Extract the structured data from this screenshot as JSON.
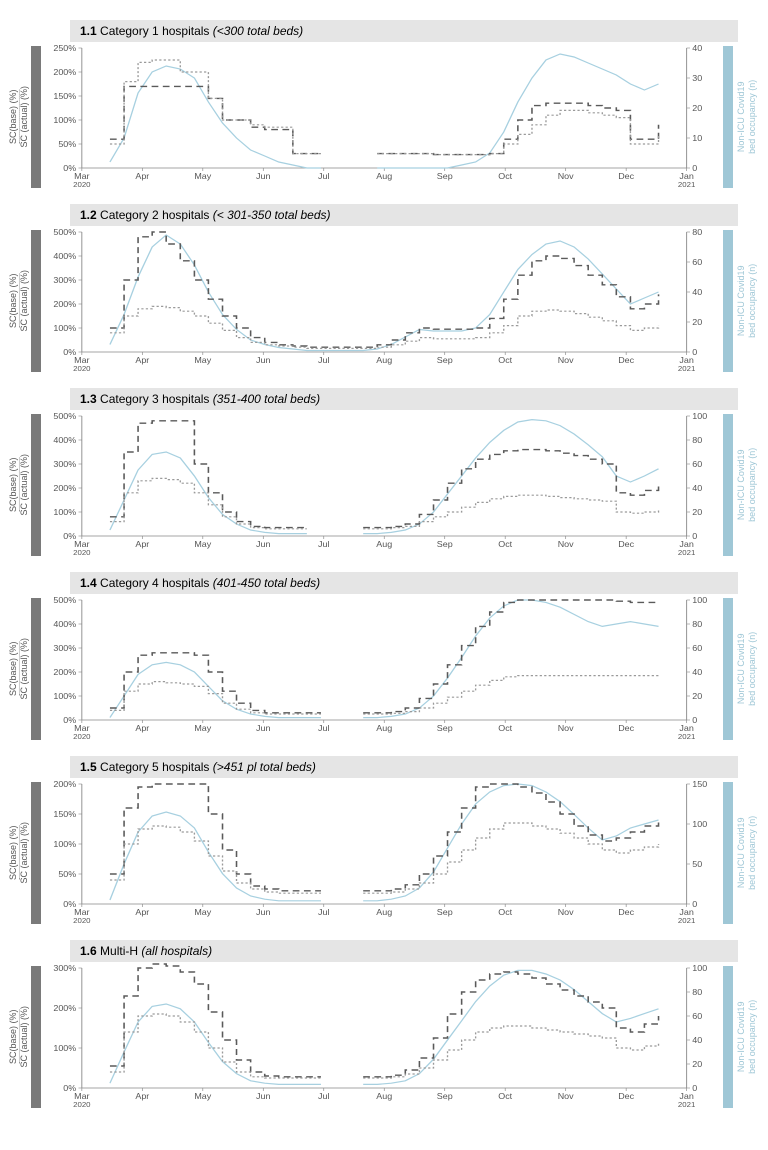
{
  "colors": {
    "background": "#ffffff",
    "title_bg": "#e5e5e5",
    "left_bar": "#7a7a7a",
    "right_bar": "#9fc7d6",
    "sc_base": "#9a9a9a",
    "sc_actual": "#5a5a5a",
    "occupancy": "#a7d0e0",
    "axis": "#888888",
    "tick_text": "#555555"
  },
  "typography": {
    "title_fontsize": 12,
    "axis_label_fontsize": 9,
    "tick_fontsize": 8
  },
  "left_axis_lines": [
    "SC(base) (%)",
    "SC (actual) (%)"
  ],
  "right_axis_lines": [
    "Non-ICU Covid19",
    "bed occupancy (n)"
  ],
  "line_styles": {
    "sc_base": {
      "dash": "2 2",
      "width": 1.2
    },
    "sc_actual": {
      "dash": "6 4",
      "width": 1.4
    },
    "occupancy": {
      "dash": "none",
      "width": 1.2
    }
  },
  "x_axis": {
    "months": [
      "Mar",
      "Apr",
      "May",
      "Jun",
      "Jul",
      "Aug",
      "Sep",
      "Oct",
      "Nov",
      "Dec",
      "Jan"
    ],
    "year_start": "2020",
    "year_end": "2021",
    "n_points": 44
  },
  "panels": [
    {
      "id": "p1",
      "num": "1.1",
      "name": "Category 1 hospitals",
      "desc": "(<300 total beds)",
      "y_left": {
        "min": 0,
        "max": 250,
        "step": 50,
        "suffix": "%"
      },
      "y_right": {
        "min": 0,
        "max": 40,
        "step": 10,
        "suffix": ""
      },
      "sc_base": [
        null,
        null,
        50,
        180,
        220,
        225,
        225,
        200,
        200,
        145,
        100,
        100,
        90,
        85,
        85,
        30,
        30,
        30,
        null,
        null,
        null,
        30,
        30,
        30,
        30,
        28,
        28,
        28,
        28,
        30,
        50,
        70,
        90,
        110,
        120,
        120,
        115,
        110,
        105,
        50,
        50,
        70,
        null,
        null
      ],
      "sc_actual": [
        null,
        null,
        60,
        170,
        170,
        170,
        170,
        170,
        170,
        145,
        100,
        100,
        85,
        80,
        80,
        30,
        30,
        30,
        null,
        null,
        null,
        30,
        30,
        30,
        30,
        28,
        28,
        28,
        28,
        30,
        60,
        100,
        130,
        135,
        135,
        135,
        130,
        125,
        120,
        60,
        60,
        90,
        null,
        null
      ],
      "occupancy": [
        null,
        null,
        2,
        10,
        25,
        32,
        34,
        33,
        30,
        22,
        15,
        10,
        6,
        4,
        2,
        1,
        0,
        0,
        null,
        null,
        null,
        0,
        0,
        0,
        0,
        0,
        0,
        1,
        2,
        5,
        12,
        22,
        30,
        36,
        38,
        37,
        35,
        33,
        31,
        28,
        26,
        28,
        null,
        null
      ]
    },
    {
      "id": "p2",
      "num": "1.2",
      "name": "Category 2 hospitals",
      "desc": "(< 301-350 total beds)",
      "y_left": {
        "min": 0,
        "max": 500,
        "step": 100,
        "suffix": "%"
      },
      "y_right": {
        "min": 0,
        "max": 80,
        "step": 20,
        "suffix": ""
      },
      "sc_base": [
        null,
        null,
        80,
        150,
        180,
        190,
        185,
        170,
        150,
        120,
        90,
        60,
        40,
        30,
        25,
        20,
        15,
        15,
        15,
        15,
        15,
        20,
        30,
        45,
        60,
        55,
        55,
        55,
        60,
        80,
        110,
        150,
        170,
        175,
        170,
        160,
        145,
        130,
        110,
        90,
        100,
        110,
        null,
        null
      ],
      "sc_actual": [
        null,
        null,
        100,
        300,
        480,
        500,
        450,
        380,
        300,
        220,
        150,
        100,
        60,
        40,
        30,
        25,
        20,
        20,
        20,
        20,
        20,
        30,
        50,
        80,
        100,
        95,
        95,
        95,
        100,
        140,
        220,
        320,
        380,
        400,
        390,
        360,
        320,
        280,
        230,
        180,
        200,
        240,
        null,
        null
      ],
      "occupancy": [
        null,
        null,
        5,
        25,
        50,
        70,
        78,
        72,
        58,
        40,
        25,
        15,
        8,
        5,
        3,
        2,
        1,
        1,
        1,
        1,
        1,
        2,
        5,
        10,
        15,
        14,
        14,
        14,
        16,
        25,
        40,
        55,
        65,
        72,
        74,
        70,
        62,
        52,
        42,
        32,
        36,
        40,
        null,
        null
      ]
    },
    {
      "id": "p3",
      "num": "1.3",
      "name": "Category 3 hospitals",
      "desc": "(351-400 total beds)",
      "y_left": {
        "min": 0,
        "max": 500,
        "step": 100,
        "suffix": "%"
      },
      "y_right": {
        "min": 0,
        "max": 100,
        "step": 20,
        "suffix": ""
      },
      "sc_base": [
        null,
        null,
        60,
        180,
        230,
        240,
        235,
        220,
        180,
        130,
        80,
        50,
        35,
        30,
        30,
        30,
        30,
        null,
        null,
        null,
        30,
        30,
        35,
        40,
        60,
        80,
        100,
        120,
        140,
        155,
        165,
        170,
        170,
        165,
        160,
        155,
        150,
        145,
        100,
        95,
        100,
        110,
        null,
        null
      ],
      "sc_actual": [
        null,
        null,
        80,
        350,
        470,
        480,
        480,
        480,
        300,
        180,
        100,
        60,
        40,
        35,
        35,
        35,
        35,
        null,
        null,
        null,
        35,
        35,
        40,
        50,
        90,
        150,
        220,
        280,
        320,
        340,
        355,
        360,
        360,
        355,
        345,
        335,
        320,
        300,
        180,
        170,
        190,
        220,
        null,
        null
      ],
      "occupancy": [
        null,
        null,
        5,
        30,
        55,
        68,
        70,
        65,
        50,
        32,
        18,
        10,
        5,
        3,
        2,
        2,
        2,
        null,
        null,
        null,
        2,
        2,
        3,
        5,
        10,
        20,
        35,
        50,
        65,
        78,
        88,
        95,
        97,
        96,
        92,
        85,
        76,
        66,
        50,
        45,
        50,
        56,
        null,
        null
      ]
    },
    {
      "id": "p4",
      "num": "1.4",
      "name": "Category 4 hospitals",
      "desc": "(401-450 total beds)",
      "y_left": {
        "min": 0,
        "max": 500,
        "step": 100,
        "suffix": "%"
      },
      "y_right": {
        "min": 0,
        "max": 100,
        "step": 20,
        "suffix": ""
      },
      "sc_base": [
        null,
        null,
        40,
        120,
        150,
        160,
        155,
        150,
        140,
        110,
        70,
        45,
        30,
        25,
        25,
        25,
        25,
        25,
        null,
        null,
        25,
        25,
        28,
        35,
        50,
        70,
        95,
        120,
        145,
        165,
        180,
        185,
        185,
        185,
        185,
        185,
        185,
        185,
        185,
        185,
        185,
        185,
        null,
        null
      ],
      "sc_actual": [
        null,
        null,
        50,
        200,
        270,
        280,
        280,
        280,
        270,
        200,
        120,
        70,
        40,
        30,
        30,
        30,
        30,
        30,
        null,
        null,
        30,
        30,
        35,
        50,
        90,
        150,
        230,
        310,
        390,
        450,
        490,
        500,
        500,
        500,
        500,
        500,
        500,
        500,
        495,
        490,
        490,
        490,
        null,
        null
      ],
      "occupancy": [
        null,
        null,
        2,
        20,
        38,
        46,
        48,
        46,
        40,
        28,
        16,
        9,
        5,
        3,
        2,
        2,
        2,
        2,
        null,
        null,
        2,
        2,
        3,
        5,
        10,
        20,
        35,
        52,
        70,
        85,
        95,
        100,
        100,
        98,
        94,
        88,
        82,
        78,
        80,
        82,
        80,
        78,
        null,
        null
      ]
    },
    {
      "id": "p5",
      "num": "1.5",
      "name": "Category 5 hospitals",
      "desc": "(>451 pl total beds)",
      "y_left": {
        "min": 0,
        "max": 200,
        "step": 50,
        "suffix": "%"
      },
      "y_right": {
        "min": 0,
        "max": 150,
        "step": 50,
        "suffix": ""
      },
      "sc_base": [
        null,
        null,
        40,
        100,
        125,
        130,
        128,
        120,
        105,
        80,
        55,
        35,
        25,
        20,
        18,
        18,
        18,
        18,
        null,
        null,
        18,
        18,
        20,
        25,
        35,
        50,
        70,
        90,
        110,
        125,
        135,
        135,
        130,
        125,
        118,
        110,
        100,
        90,
        85,
        90,
        95,
        100,
        null,
        null
      ],
      "sc_actual": [
        null,
        null,
        50,
        160,
        195,
        200,
        200,
        200,
        200,
        150,
        90,
        50,
        30,
        25,
        22,
        22,
        22,
        22,
        null,
        null,
        22,
        22,
        25,
        32,
        50,
        80,
        120,
        160,
        195,
        200,
        200,
        195,
        185,
        170,
        150,
        130,
        115,
        105,
        110,
        120,
        130,
        140,
        null,
        null
      ],
      "occupancy": [
        null,
        null,
        5,
        50,
        90,
        110,
        115,
        110,
        95,
        65,
        38,
        20,
        10,
        6,
        4,
        4,
        4,
        4,
        null,
        null,
        4,
        4,
        6,
        10,
        20,
        40,
        70,
        100,
        125,
        140,
        148,
        150,
        148,
        140,
        128,
        112,
        95,
        80,
        85,
        95,
        100,
        105,
        null,
        null
      ]
    },
    {
      "id": "p6",
      "num": "1.6",
      "name": "Multi-H",
      "desc": "(all hospitals)",
      "y_left": {
        "min": 0,
        "max": 300,
        "step": 100,
        "suffix": "%"
      },
      "y_right": {
        "min": 0,
        "max": 100,
        "step": 20,
        "suffix": ""
      },
      "sc_base": [
        null,
        null,
        40,
        140,
        180,
        185,
        180,
        165,
        140,
        100,
        65,
        40,
        28,
        25,
        25,
        25,
        25,
        25,
        null,
        null,
        25,
        25,
        28,
        35,
        50,
        70,
        95,
        120,
        140,
        150,
        155,
        155,
        150,
        145,
        140,
        135,
        130,
        125,
        100,
        95,
        105,
        115,
        null,
        null
      ],
      "sc_actual": [
        null,
        null,
        55,
        230,
        300,
        310,
        305,
        290,
        260,
        190,
        120,
        70,
        40,
        30,
        28,
        28,
        28,
        28,
        null,
        null,
        28,
        28,
        32,
        45,
        75,
        125,
        185,
        240,
        270,
        285,
        290,
        285,
        275,
        260,
        245,
        230,
        215,
        200,
        150,
        140,
        160,
        180,
        null,
        null
      ],
      "occupancy": [
        null,
        null,
        4,
        30,
        55,
        68,
        70,
        66,
        55,
        38,
        22,
        12,
        6,
        4,
        3,
        3,
        3,
        3,
        null,
        null,
        3,
        3,
        4,
        6,
        12,
        24,
        40,
        56,
        72,
        85,
        94,
        98,
        98,
        95,
        90,
        82,
        72,
        62,
        55,
        58,
        62,
        66,
        null,
        null
      ]
    }
  ]
}
